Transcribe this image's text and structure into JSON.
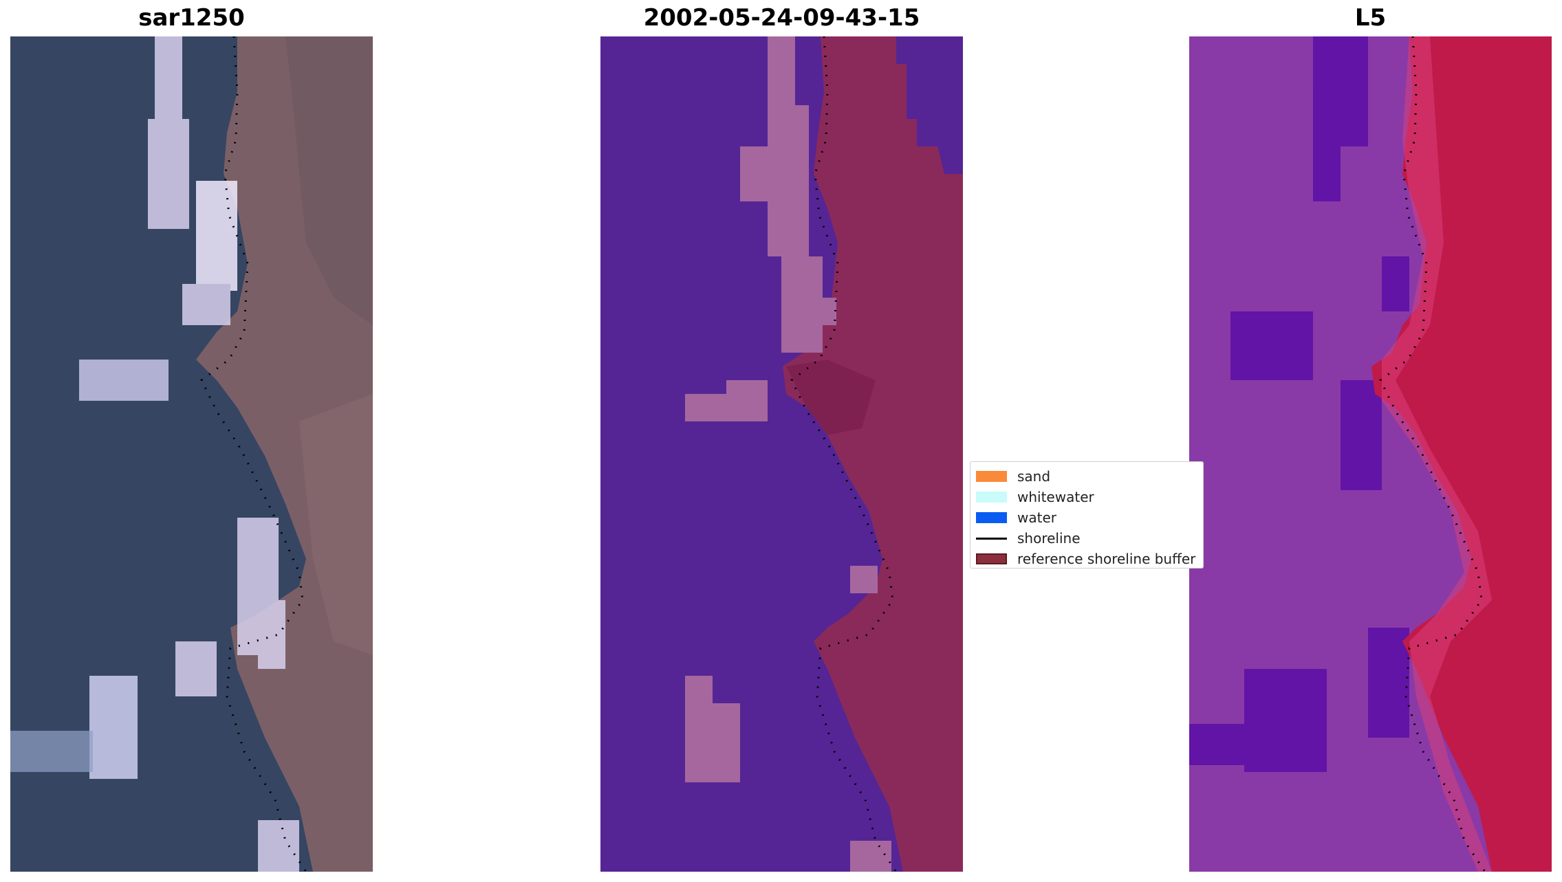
{
  "panels": [
    {
      "title": "sar1250"
    },
    {
      "title": "2002-05-24-09-43-15"
    },
    {
      "title": "L5"
    }
  ],
  "legend": {
    "items": [
      {
        "label": "sand",
        "color": "#f98a3a",
        "kind": "patch"
      },
      {
        "label": "whitewater",
        "color": "#c9fbfa",
        "kind": "patch"
      },
      {
        "label": "water",
        "color": "#0a5cf0",
        "kind": "patch"
      },
      {
        "label": "shoreline",
        "color": "#000000",
        "kind": "line"
      },
      {
        "label": "reference shoreline buffer",
        "color": "#8c2f3c",
        "kind": "patch-outlined"
      }
    ]
  },
  "colors": {
    "rgb_water": "#364562",
    "rgb_land": "#7a6066",
    "rgb_surf": "#d8d0ee",
    "class_water": "#552595",
    "class_surf": "#a6679f",
    "class_buffer": "#8a2a5a",
    "l5_water": "#8a3aa6",
    "l5_deep": "#5a0ea6",
    "l5_land": "#c01a4a"
  }
}
